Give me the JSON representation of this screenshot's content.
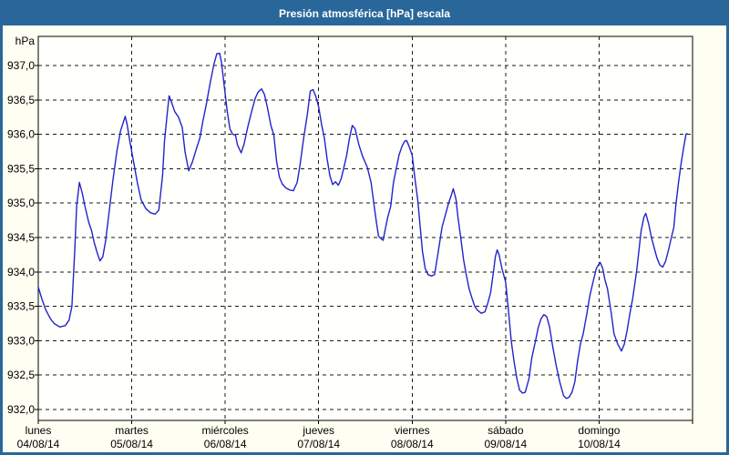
{
  "window": {
    "title": "Presión atmosférica [hPa] escala"
  },
  "colors": {
    "titlebar": "#29679a",
    "panel_border": "#29679a",
    "panel_bg": "#fffef2",
    "plot_bg": "#fffffc",
    "line": "#2323cb",
    "grid": "#1a1a1a",
    "axis": "#000000",
    "title_text": "#ffffff",
    "axis_text": "#000000"
  },
  "chart_data": {
    "type": "line",
    "title": "Presión atmosférica [hPa] escala",
    "grid": "dashed",
    "legend_position": "none",
    "y_axis": {
      "unit_label": "hPa",
      "min": 932.0,
      "max": 937.0,
      "tick_step": 0.5,
      "tick_labels": [
        "937,0",
        "936,5",
        "936,0",
        "935,5",
        "935,0",
        "934,5",
        "934,0",
        "933,5",
        "933,0",
        "932,5",
        "932,0"
      ]
    },
    "x_axis": {
      "days": [
        {
          "name": "lunes",
          "date": "04/08/14"
        },
        {
          "name": "martes",
          "date": "05/08/14"
        },
        {
          "name": "miércoles",
          "date": "06/08/14"
        },
        {
          "name": "jueves",
          "date": "07/08/14"
        },
        {
          "name": "viernes",
          "date": "08/08/14"
        },
        {
          "name": "sábado",
          "date": "09/08/14"
        },
        {
          "name": "domingo",
          "date": "10/08/14"
        }
      ],
      "span_days": 7
    },
    "series": [
      {
        "name": "Presión atmosférica",
        "units": "hPa",
        "points": [
          [
            0.0,
            933.78
          ],
          [
            0.04,
            933.6
          ],
          [
            0.08,
            933.45
          ],
          [
            0.13,
            933.32
          ],
          [
            0.17,
            933.25
          ],
          [
            0.23,
            933.2
          ],
          [
            0.29,
            933.22
          ],
          [
            0.33,
            933.3
          ],
          [
            0.36,
            933.5
          ],
          [
            0.39,
            934.3
          ],
          [
            0.41,
            934.95
          ],
          [
            0.44,
            935.3
          ],
          [
            0.47,
            935.15
          ],
          [
            0.5,
            934.95
          ],
          [
            0.54,
            934.72
          ],
          [
            0.57,
            934.6
          ],
          [
            0.6,
            934.42
          ],
          [
            0.63,
            934.28
          ],
          [
            0.66,
            934.16
          ],
          [
            0.69,
            934.22
          ],
          [
            0.72,
            934.45
          ],
          [
            0.76,
            934.9
          ],
          [
            0.8,
            935.35
          ],
          [
            0.84,
            935.75
          ],
          [
            0.88,
            936.05
          ],
          [
            0.93,
            936.26
          ],
          [
            0.95,
            936.15
          ],
          [
            0.98,
            935.9
          ],
          [
            1.02,
            935.6
          ],
          [
            1.06,
            935.3
          ],
          [
            1.1,
            935.05
          ],
          [
            1.15,
            934.92
          ],
          [
            1.2,
            934.86
          ],
          [
            1.25,
            934.84
          ],
          [
            1.29,
            934.9
          ],
          [
            1.33,
            935.4
          ],
          [
            1.35,
            935.9
          ],
          [
            1.38,
            936.3
          ],
          [
            1.4,
            936.56
          ],
          [
            1.43,
            936.45
          ],
          [
            1.46,
            936.33
          ],
          [
            1.5,
            936.25
          ],
          [
            1.54,
            936.1
          ],
          [
            1.57,
            935.75
          ],
          [
            1.61,
            935.47
          ],
          [
            1.65,
            935.6
          ],
          [
            1.69,
            935.78
          ],
          [
            1.73,
            935.95
          ],
          [
            1.76,
            936.18
          ],
          [
            1.8,
            936.45
          ],
          [
            1.84,
            936.75
          ],
          [
            1.88,
            937.02
          ],
          [
            1.91,
            937.17
          ],
          [
            1.94,
            937.18
          ],
          [
            1.96,
            937.05
          ],
          [
            1.99,
            936.7
          ],
          [
            2.02,
            936.35
          ],
          [
            2.05,
            936.08
          ],
          [
            2.08,
            936.0
          ],
          [
            2.11,
            935.99
          ],
          [
            2.13,
            935.85
          ],
          [
            2.17,
            935.73
          ],
          [
            2.2,
            935.85
          ],
          [
            2.24,
            936.1
          ],
          [
            2.28,
            936.32
          ],
          [
            2.32,
            936.52
          ],
          [
            2.35,
            936.61
          ],
          [
            2.39,
            936.66
          ],
          [
            2.42,
            936.58
          ],
          [
            2.45,
            936.4
          ],
          [
            2.49,
            936.12
          ],
          [
            2.52,
            935.99
          ],
          [
            2.55,
            935.6
          ],
          [
            2.58,
            935.38
          ],
          [
            2.61,
            935.28
          ],
          [
            2.65,
            935.22
          ],
          [
            2.69,
            935.19
          ],
          [
            2.73,
            935.18
          ],
          [
            2.77,
            935.3
          ],
          [
            2.8,
            935.55
          ],
          [
            2.84,
            935.95
          ],
          [
            2.88,
            936.3
          ],
          [
            2.91,
            936.63
          ],
          [
            2.94,
            936.65
          ],
          [
            2.97,
            936.55
          ],
          [
            3.0,
            936.4
          ],
          [
            3.03,
            936.15
          ],
          [
            3.06,
            935.95
          ],
          [
            3.09,
            935.65
          ],
          [
            3.12,
            935.4
          ],
          [
            3.15,
            935.27
          ],
          [
            3.18,
            935.31
          ],
          [
            3.21,
            935.26
          ],
          [
            3.24,
            935.35
          ],
          [
            3.27,
            935.52
          ],
          [
            3.3,
            935.7
          ],
          [
            3.33,
            935.95
          ],
          [
            3.36,
            936.13
          ],
          [
            3.39,
            936.08
          ],
          [
            3.43,
            935.85
          ],
          [
            3.47,
            935.68
          ],
          [
            3.52,
            935.52
          ],
          [
            3.56,
            935.3
          ],
          [
            3.59,
            935.0
          ],
          [
            3.62,
            934.7
          ],
          [
            3.64,
            934.52
          ],
          [
            3.67,
            934.48
          ],
          [
            3.69,
            934.46
          ],
          [
            3.71,
            934.6
          ],
          [
            3.74,
            934.8
          ],
          [
            3.77,
            934.95
          ],
          [
            3.8,
            935.3
          ],
          [
            3.83,
            935.5
          ],
          [
            3.86,
            935.7
          ],
          [
            3.89,
            935.82
          ],
          [
            3.92,
            935.9
          ],
          [
            3.94,
            935.91
          ],
          [
            3.96,
            935.85
          ],
          [
            4.0,
            935.7
          ],
          [
            4.03,
            935.35
          ],
          [
            4.06,
            935.05
          ],
          [
            4.09,
            934.6
          ],
          [
            4.11,
            934.3
          ],
          [
            4.14,
            934.05
          ],
          [
            4.17,
            933.96
          ],
          [
            4.21,
            933.94
          ],
          [
            4.24,
            933.96
          ],
          [
            4.28,
            934.3
          ],
          [
            4.32,
            934.65
          ],
          [
            4.36,
            934.85
          ],
          [
            4.39,
            935.0
          ],
          [
            4.42,
            935.12
          ],
          [
            4.44,
            935.21
          ],
          [
            4.47,
            935.05
          ],
          [
            4.49,
            934.8
          ],
          [
            4.52,
            934.5
          ],
          [
            4.55,
            934.18
          ],
          [
            4.58,
            933.95
          ],
          [
            4.61,
            933.75
          ],
          [
            4.64,
            933.62
          ],
          [
            4.67,
            933.5
          ],
          [
            4.7,
            933.44
          ],
          [
            4.74,
            933.4
          ],
          [
            4.78,
            933.42
          ],
          [
            4.81,
            933.55
          ],
          [
            4.84,
            933.7
          ],
          [
            4.87,
            934.0
          ],
          [
            4.89,
            934.22
          ],
          [
            4.91,
            934.32
          ],
          [
            4.93,
            934.25
          ],
          [
            4.96,
            934.05
          ],
          [
            5.0,
            933.85
          ],
          [
            5.03,
            933.45
          ],
          [
            5.06,
            933.0
          ],
          [
            5.09,
            932.7
          ],
          [
            5.12,
            932.45
          ],
          [
            5.15,
            932.28
          ],
          [
            5.18,
            932.24
          ],
          [
            5.21,
            932.25
          ],
          [
            5.25,
            932.45
          ],
          [
            5.28,
            932.75
          ],
          [
            5.32,
            933.0
          ],
          [
            5.35,
            933.2
          ],
          [
            5.38,
            933.32
          ],
          [
            5.41,
            933.38
          ],
          [
            5.44,
            933.35
          ],
          [
            5.47,
            933.2
          ],
          [
            5.5,
            932.95
          ],
          [
            5.54,
            932.65
          ],
          [
            5.58,
            932.4
          ],
          [
            5.62,
            932.2
          ],
          [
            5.65,
            932.16
          ],
          [
            5.68,
            932.18
          ],
          [
            5.71,
            932.25
          ],
          [
            5.74,
            932.4
          ],
          [
            5.77,
            932.7
          ],
          [
            5.8,
            932.95
          ],
          [
            5.83,
            933.1
          ],
          [
            5.87,
            933.4
          ],
          [
            5.9,
            933.65
          ],
          [
            5.93,
            933.82
          ],
          [
            5.97,
            934.05
          ],
          [
            6.01,
            934.14
          ],
          [
            6.04,
            934.05
          ],
          [
            6.06,
            933.9
          ],
          [
            6.09,
            933.75
          ],
          [
            6.13,
            933.4
          ],
          [
            6.16,
            933.1
          ],
          [
            6.2,
            932.95
          ],
          [
            6.24,
            932.85
          ],
          [
            6.27,
            932.95
          ],
          [
            6.3,
            933.15
          ],
          [
            6.33,
            933.4
          ],
          [
            6.36,
            933.62
          ],
          [
            6.4,
            934.0
          ],
          [
            6.43,
            934.35
          ],
          [
            6.45,
            934.6
          ],
          [
            6.48,
            934.8
          ],
          [
            6.5,
            934.85
          ],
          [
            6.53,
            934.7
          ],
          [
            6.56,
            934.5
          ],
          [
            6.59,
            934.35
          ],
          [
            6.62,
            934.2
          ],
          [
            6.65,
            934.1
          ],
          [
            6.68,
            934.07
          ],
          [
            6.71,
            934.15
          ],
          [
            6.74,
            934.3
          ],
          [
            6.77,
            934.48
          ],
          [
            6.8,
            934.65
          ],
          [
            6.82,
            934.95
          ],
          [
            6.85,
            935.3
          ],
          [
            6.88,
            935.6
          ],
          [
            6.91,
            935.85
          ],
          [
            6.93,
            936.0
          ],
          [
            6.94,
            936.01
          ]
        ]
      }
    ]
  }
}
